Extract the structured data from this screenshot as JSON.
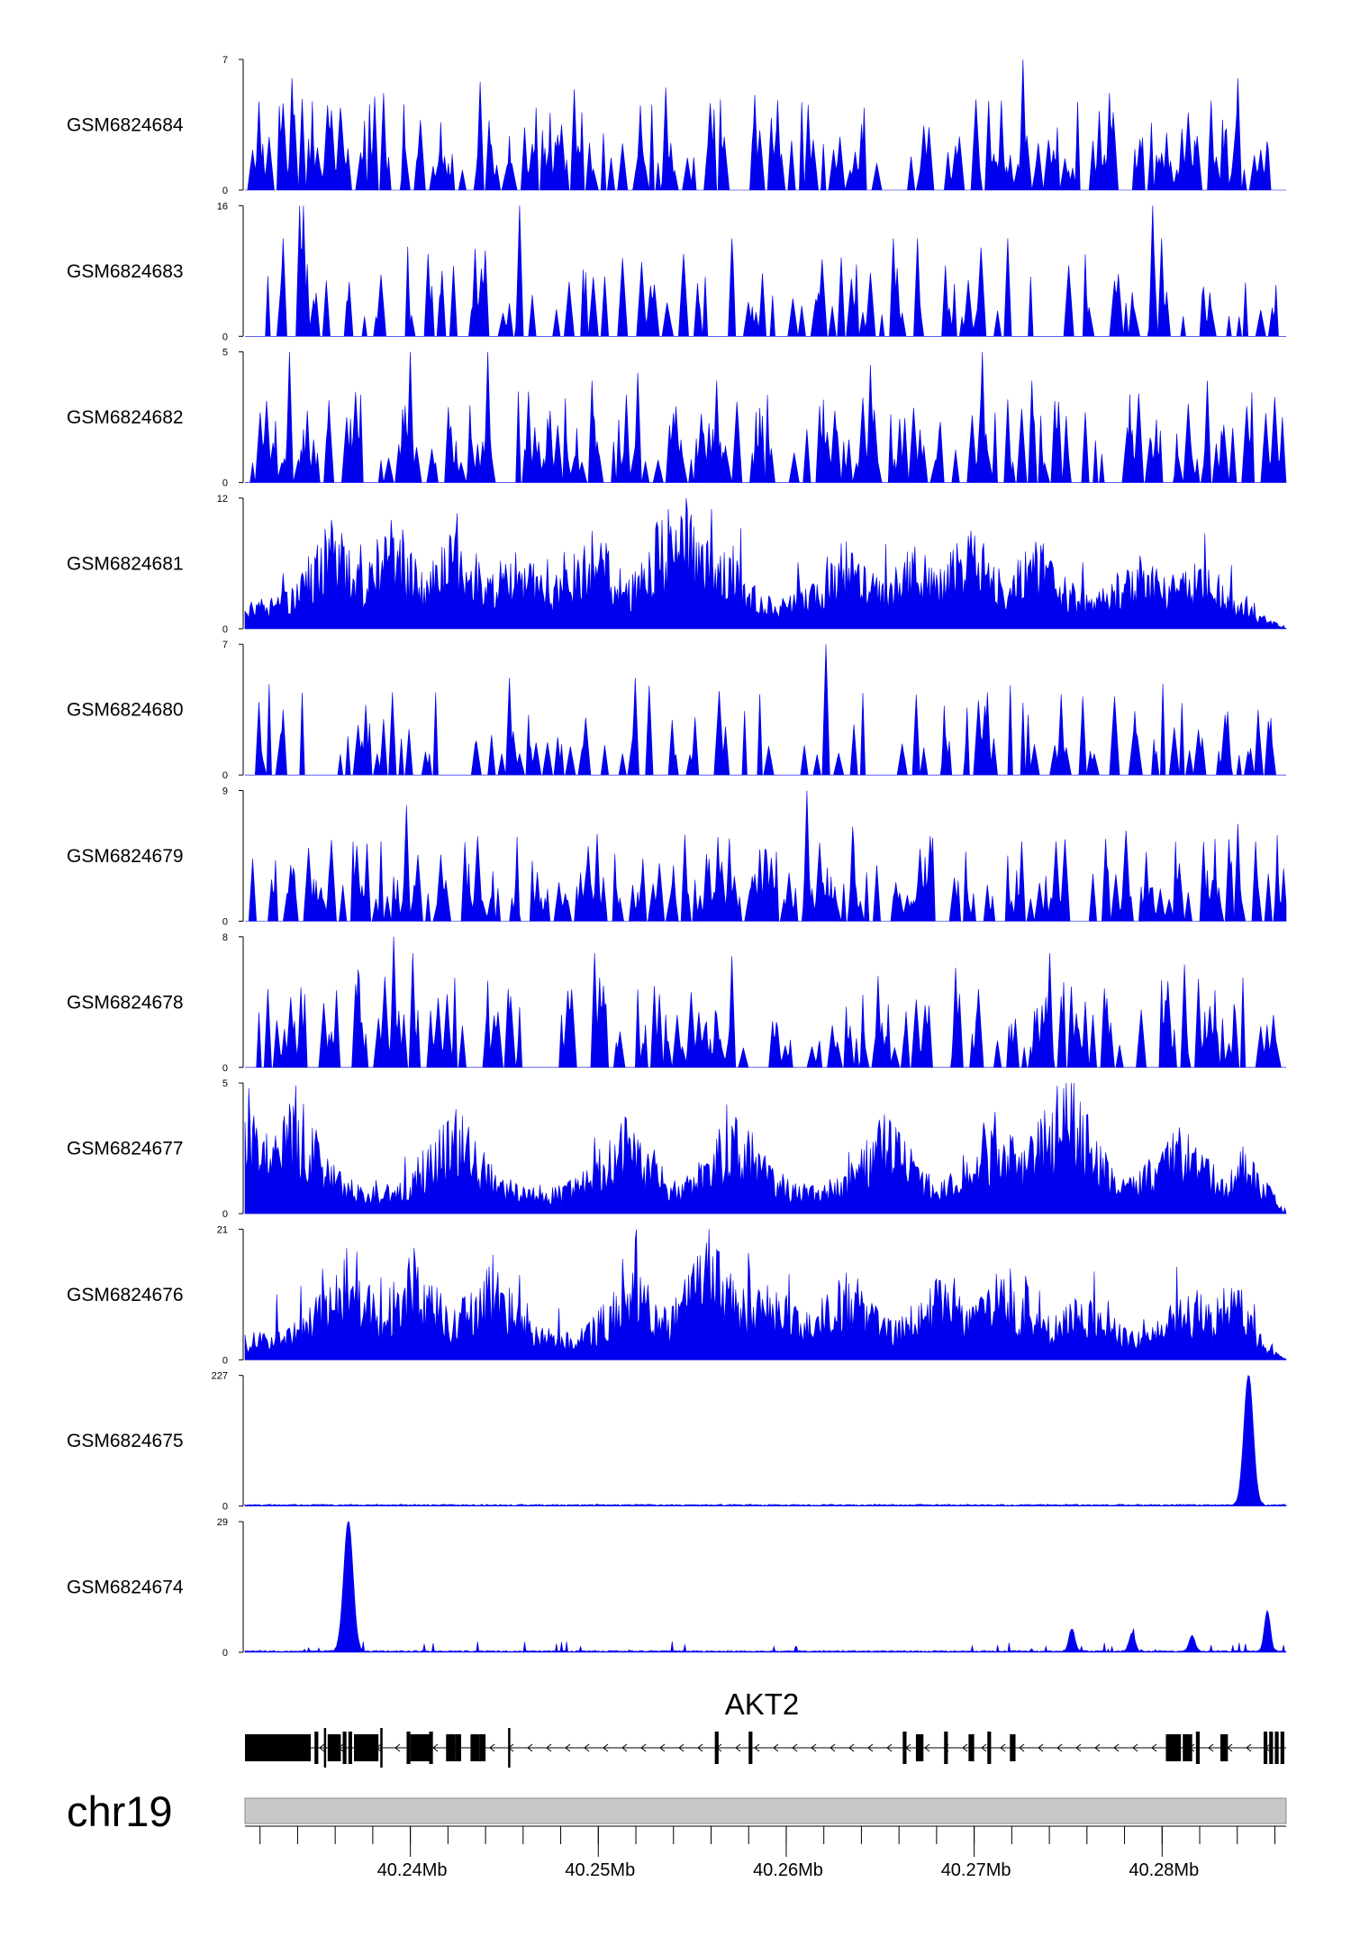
{
  "chart_data": {
    "type": "area",
    "chromosome": "chr19",
    "genomic_axis": {
      "min_mb": 40.2312,
      "max_mb": 40.2866,
      "tick_labels": [
        "40.24Mb",
        "40.25Mb",
        "40.26Mb",
        "40.27Mb",
        "40.28Mb"
      ],
      "tick_values_mb": [
        40.24,
        40.25,
        40.26,
        40.27,
        40.28
      ],
      "minor_tick_step_mb": 0.002
    },
    "color": "#0000ee",
    "tracks": [
      {
        "name": "GSM6824684",
        "ymax": 7,
        "ymax_label": "7",
        "ymin_label": "0",
        "profile": "spiky",
        "peaks": [
          [
            40.2337,
            6
          ],
          [
            40.2381,
            5
          ],
          [
            40.2386,
            5.2
          ],
          [
            40.2437,
            5.8
          ],
          [
            40.2487,
            5.4
          ],
          [
            40.2536,
            5.5
          ],
          [
            40.2583,
            5.1
          ],
          [
            40.2726,
            7
          ],
          [
            40.2772,
            5.2
          ],
          [
            40.284,
            6
          ],
          [
            40.2856,
            2.6
          ]
        ]
      },
      {
        "name": "GSM6824683",
        "ymax": 16,
        "ymax_label": "16",
        "ymin_label": "0",
        "profile": "sparse",
        "peaks": [
          [
            40.2332,
            12
          ],
          [
            40.2341,
            16
          ],
          [
            40.2343,
            16
          ],
          [
            40.2458,
            16
          ],
          [
            40.2571,
            12
          ],
          [
            40.2657,
            12
          ],
          [
            40.267,
            12
          ],
          [
            40.2718,
            12
          ],
          [
            40.2795,
            16
          ],
          [
            40.28,
            12
          ]
        ]
      },
      {
        "name": "GSM6824682",
        "ymax": 5,
        "ymax_label": "5",
        "ymin_label": "0",
        "profile": "spiky",
        "peaks": [
          [
            40.2336,
            5
          ],
          [
            40.24,
            5
          ],
          [
            40.2441,
            5
          ],
          [
            40.2497,
            3.9
          ],
          [
            40.2521,
            4.2
          ],
          [
            40.2563,
            3.9
          ],
          [
            40.2645,
            4.5
          ],
          [
            40.2704,
            5
          ],
          [
            40.2731,
            3.9
          ],
          [
            40.2824,
            3.9
          ]
        ]
      },
      {
        "name": "GSM6824681",
        "ymax": 12,
        "ymax_label": "12",
        "ymin_label": "0",
        "profile": "dense",
        "peaks": [
          [
            40.2358,
            10
          ],
          [
            40.239,
            10
          ],
          [
            40.2424,
            9
          ],
          [
            40.2456,
            7
          ],
          [
            40.2497,
            9
          ],
          [
            40.2537,
            11
          ],
          [
            40.2547,
            12
          ],
          [
            40.256,
            11
          ],
          [
            40.2632,
            8
          ],
          [
            40.2667,
            7
          ],
          [
            40.2698,
            9
          ],
          [
            40.2733,
            8
          ],
          [
            40.2789,
            6
          ],
          [
            40.2817,
            6
          ]
        ]
      },
      {
        "name": "GSM6824680",
        "ymax": 7,
        "ymax_label": "7",
        "ymin_label": "0",
        "profile": "sparse",
        "peaks": [
          [
            40.2332,
            3.5
          ],
          [
            40.2386,
            3
          ],
          [
            40.2453,
            5.2
          ],
          [
            40.252,
            5.2
          ],
          [
            40.2564,
            4
          ],
          [
            40.2621,
            7
          ],
          [
            40.2669,
            4.3
          ],
          [
            40.2758,
            4.2
          ],
          [
            40.2851,
            3.5
          ]
        ]
      },
      {
        "name": "GSM6824679",
        "ymax": 9,
        "ymax_label": "9",
        "ymin_label": "0",
        "profile": "spiky",
        "peaks": [
          [
            40.2316,
            4.3
          ],
          [
            40.2398,
            8
          ],
          [
            40.2524,
            4.3
          ],
          [
            40.257,
            5.7
          ],
          [
            40.2611,
            9
          ],
          [
            40.2635,
            6.5
          ],
          [
            40.2725,
            5.5
          ],
          [
            40.284,
            6.7
          ],
          [
            40.285,
            5.5
          ]
        ]
      },
      {
        "name": "GSM6824678",
        "ymax": 8,
        "ymax_label": "8",
        "ymin_label": "0",
        "profile": "spiky",
        "peaks": [
          [
            40.2324,
            4.8
          ],
          [
            40.2372,
            6
          ],
          [
            40.2391,
            8
          ],
          [
            40.2401,
            7
          ],
          [
            40.2498,
            7
          ],
          [
            40.2571,
            6.8
          ],
          [
            40.2649,
            5.6
          ],
          [
            40.269,
            6.1
          ],
          [
            40.274,
            7
          ],
          [
            40.2812,
            6.3
          ]
        ]
      },
      {
        "name": "GSM6824677",
        "ymax": 5,
        "ymax_label": "5",
        "ymin_label": "0",
        "profile": "dense",
        "peaks": [
          [
            40.2314,
            4.8
          ],
          [
            40.2339,
            4.9
          ],
          [
            40.2424,
            4
          ],
          [
            40.2514,
            3.7
          ],
          [
            40.2573,
            3.7
          ],
          [
            40.2652,
            3.8
          ],
          [
            40.2711,
            3.9
          ],
          [
            40.2744,
            4.9
          ],
          [
            40.2752,
            5
          ],
          [
            40.2809,
            3.3
          ],
          [
            40.2856,
            3.1
          ]
        ]
      },
      {
        "name": "GSM6824676",
        "ymax": 21,
        "ymax_label": "21",
        "ymin_label": "0",
        "profile": "dense",
        "peaks": [
          [
            40.2366,
            18
          ],
          [
            40.2402,
            18
          ],
          [
            40.2442,
            15
          ],
          [
            40.2518,
            14
          ],
          [
            40.2559,
            21
          ],
          [
            40.259,
            12
          ],
          [
            40.2632,
            14
          ],
          [
            40.268,
            13
          ],
          [
            40.2716,
            13
          ],
          [
            40.2757,
            9
          ],
          [
            40.2817,
            9
          ],
          [
            40.2838,
            11
          ]
        ]
      },
      {
        "name": "GSM6824675",
        "ymax": 227,
        "ymax_label": "227",
        "ymin_label": "0",
        "profile": "single-peak",
        "peaks": [
          [
            40.2846,
            227
          ]
        ]
      },
      {
        "name": "GSM6824674",
        "ymax": 29,
        "ymax_label": "29",
        "ymin_label": "0",
        "profile": "single-peak",
        "peaks": [
          [
            40.2367,
            29
          ],
          [
            40.2752,
            5
          ],
          [
            40.2784,
            4
          ],
          [
            40.2816,
            3.5
          ],
          [
            40.2856,
            9
          ]
        ]
      }
    ],
    "gene_track": {
      "gene": "AKT2",
      "strand": "-",
      "start_mb": 40.2312,
      "end_mb": 40.2866,
      "exons_mb": [
        [
          40.2312,
          40.2347
        ],
        [
          40.2349,
          40.2351
        ],
        [
          40.2354,
          40.2355
        ],
        [
          40.2356,
          40.2363
        ],
        [
          40.2364,
          40.2366
        ],
        [
          40.2367,
          40.2369
        ],
        [
          40.237,
          40.2383
        ],
        [
          40.2384,
          40.2385
        ],
        [
          40.2398,
          40.24
        ],
        [
          40.24,
          40.241
        ],
        [
          40.241,
          40.2412
        ],
        [
          40.2419,
          40.2424
        ],
        [
          40.2424,
          40.2427
        ],
        [
          40.2432,
          40.2437
        ],
        [
          40.2437,
          40.244
        ],
        [
          40.2452,
          40.2453
        ],
        [
          40.2562,
          40.2564
        ],
        [
          40.258,
          40.2582
        ],
        [
          40.2662,
          40.2664
        ],
        [
          40.2669,
          40.2673
        ],
        [
          40.2684,
          40.2686
        ],
        [
          40.2697,
          40.27
        ],
        [
          40.2707,
          40.2709
        ],
        [
          40.2719,
          40.2722
        ],
        [
          40.2802,
          40.281
        ],
        [
          40.2811,
          40.2816
        ],
        [
          40.2818,
          40.282
        ],
        [
          40.2831,
          40.2835
        ],
        [
          40.2854,
          40.2856
        ],
        [
          40.2857,
          40.2859
        ],
        [
          40.286,
          40.2862
        ],
        [
          40.2863,
          40.2865
        ]
      ]
    }
  }
}
